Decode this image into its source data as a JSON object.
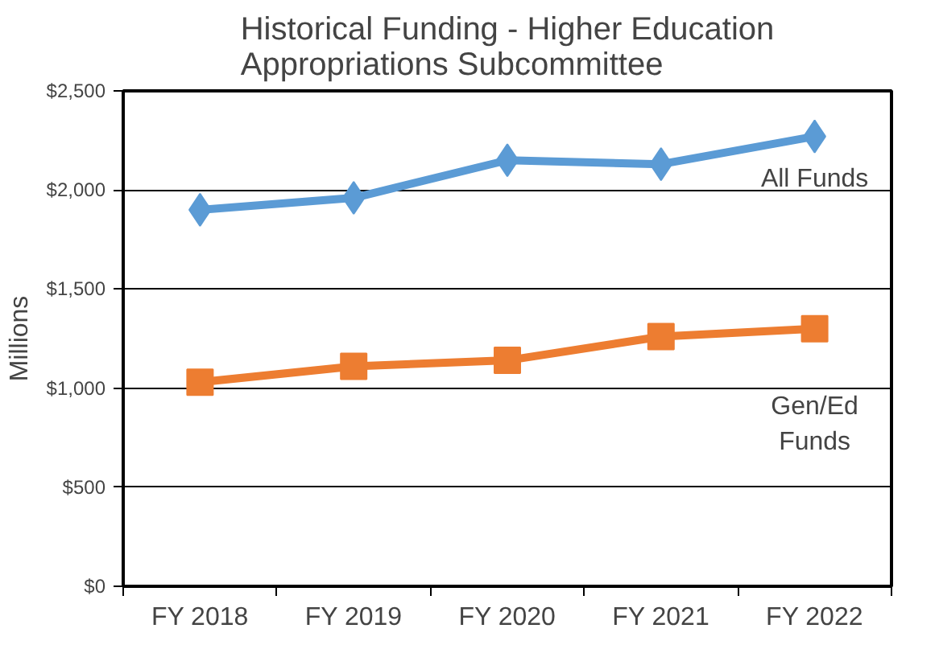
{
  "chart_data": {
    "type": "line",
    "title": "Historical Funding - Higher Education\nAppropriations Subcommittee",
    "ylabel": "Millions",
    "categories": [
      "FY 2018",
      "FY 2019",
      "FY 2020",
      "FY 2021",
      "FY 2022"
    ],
    "series": [
      {
        "name": "All Funds",
        "color": "#5b9bd5",
        "marker": "diamond",
        "values": [
          1900,
          1960,
          2150,
          2130,
          2270
        ]
      },
      {
        "name": "Gen/Ed\nFunds",
        "color": "#ed7d31",
        "marker": "square",
        "values": [
          1030,
          1110,
          1140,
          1260,
          1300
        ]
      }
    ],
    "ylim": [
      0,
      2500
    ],
    "yticks": [
      {
        "value": 0,
        "label": "$0"
      },
      {
        "value": 500,
        "label": "$500"
      },
      {
        "value": 1000,
        "label": "$1,000"
      },
      {
        "value": 1500,
        "label": "$1,500"
      },
      {
        "value": 2000,
        "label": "$2,000"
      },
      {
        "value": 2500,
        "label": "$2,500"
      }
    ],
    "grid": "y"
  }
}
